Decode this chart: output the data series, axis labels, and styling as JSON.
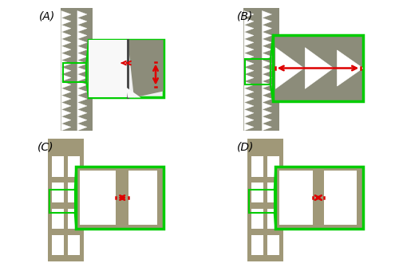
{
  "bg_color": "#ffffff",
  "tri_gray": "#8c8c7a",
  "sq_gray": "#a09878",
  "white": "#ffffff",
  "green": "#00cc00",
  "red": "#dd0000",
  "label_A": "(A)",
  "label_B": "(B)",
  "label_C": "(C)",
  "label_D": "(D)",
  "inset_light": "#f0f0f0",
  "dark_line": "#404040"
}
